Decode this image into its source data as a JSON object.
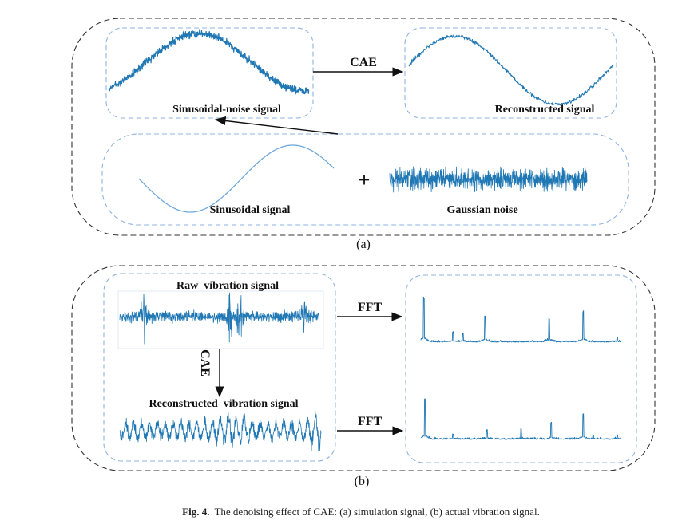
{
  "panel_a": {
    "noisy_label": "Sinusoidal-noise signal",
    "reconstructed_label": "Reconstructed signal",
    "arrow_label": "CAE",
    "sinusoid_label": "Sinusoidal signal",
    "noise_label": "Gaussian noise",
    "plus": "+",
    "sublabel": "(a)"
  },
  "panel_b": {
    "raw_label": "Raw  vibration signal",
    "reconstructed_label": "Reconstructed  vibration signal",
    "vertical_arrow_label": "CAE",
    "fft_label_top": "FFT",
    "fft_label_bottom": "FFT",
    "sublabel": "(b)"
  },
  "caption": {
    "prefix": "Fig. 4.",
    "text": "The denoising effect of CAE: (a) simulation signal, (b) actual vibration signal."
  },
  "colors": {
    "signal": "#1f77b4",
    "light_signal": "#6fa8dc",
    "inner_border": "#8fb3df",
    "outer_border": "#333333"
  }
}
